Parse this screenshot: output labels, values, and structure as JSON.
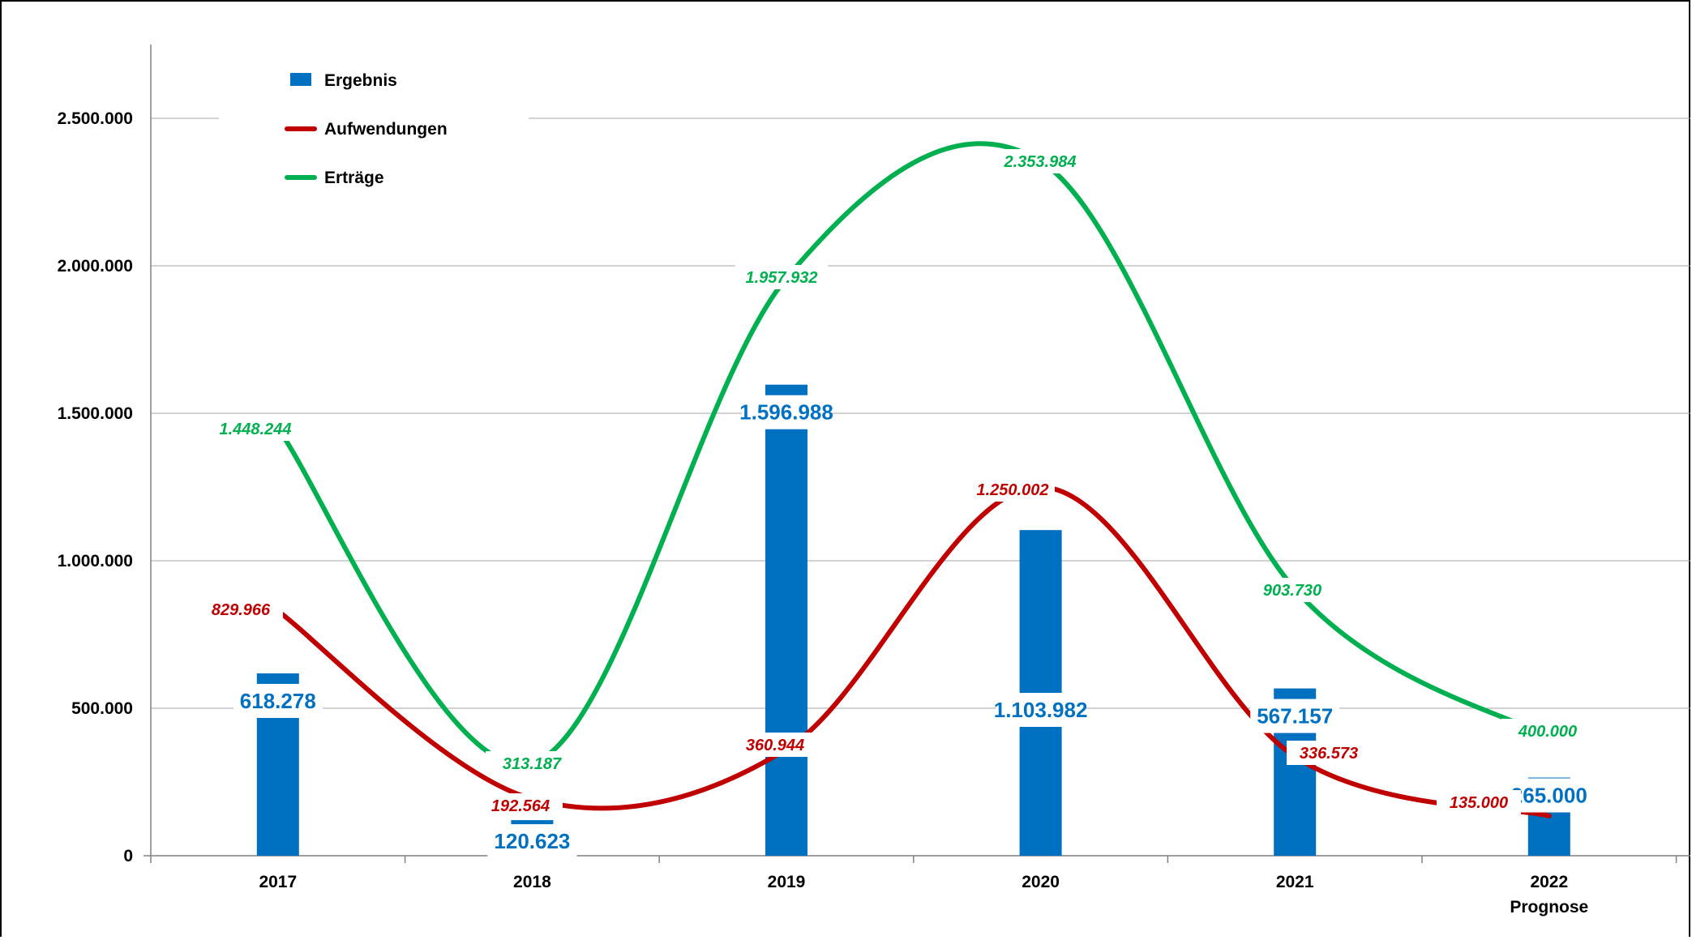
{
  "chart_data": {
    "type": "bar",
    "categories": [
      "2017",
      "2018",
      "2019",
      "2020",
      "2021",
      "2022"
    ],
    "category_sublabels": [
      "",
      "",
      "",
      "",
      "",
      "Prognose"
    ],
    "ylim": [
      0,
      2750000
    ],
    "yticks": [
      0,
      500000,
      1000000,
      1500000,
      2000000,
      2500000
    ],
    "ytick_labels": [
      "0",
      "500.000",
      "1.000.000",
      "1.500.000",
      "2.000.000",
      "2.500.000"
    ],
    "grid": true,
    "legend_position": "top-left",
    "series": [
      {
        "name": "Ergebnis",
        "kind": "bar",
        "color": "#0070c0",
        "values": [
          618278,
          120623,
          1596988,
          1103982,
          567157,
          265000
        ],
        "labels": [
          "618.278",
          "120.623",
          "1.596.988",
          "1.103.982",
          "567.157",
          "265.000"
        ]
      },
      {
        "name": "Aufwendungen",
        "kind": "line",
        "color": "#c00000",
        "values": [
          829966,
          192564,
          360944,
          1250002,
          336573,
          135000
        ],
        "labels": [
          "829.966",
          "192.564",
          "360.944",
          "1.250.002",
          "336.573",
          "135.000"
        ]
      },
      {
        "name": "Erträge",
        "kind": "line",
        "color": "#00b050",
        "values": [
          1448244,
          313187,
          1957932,
          2353984,
          903730,
          400000
        ],
        "labels": [
          "1.448.244",
          "313.187",
          "1.957.932",
          "2.353.984",
          "903.730",
          "400.000"
        ]
      }
    ]
  }
}
